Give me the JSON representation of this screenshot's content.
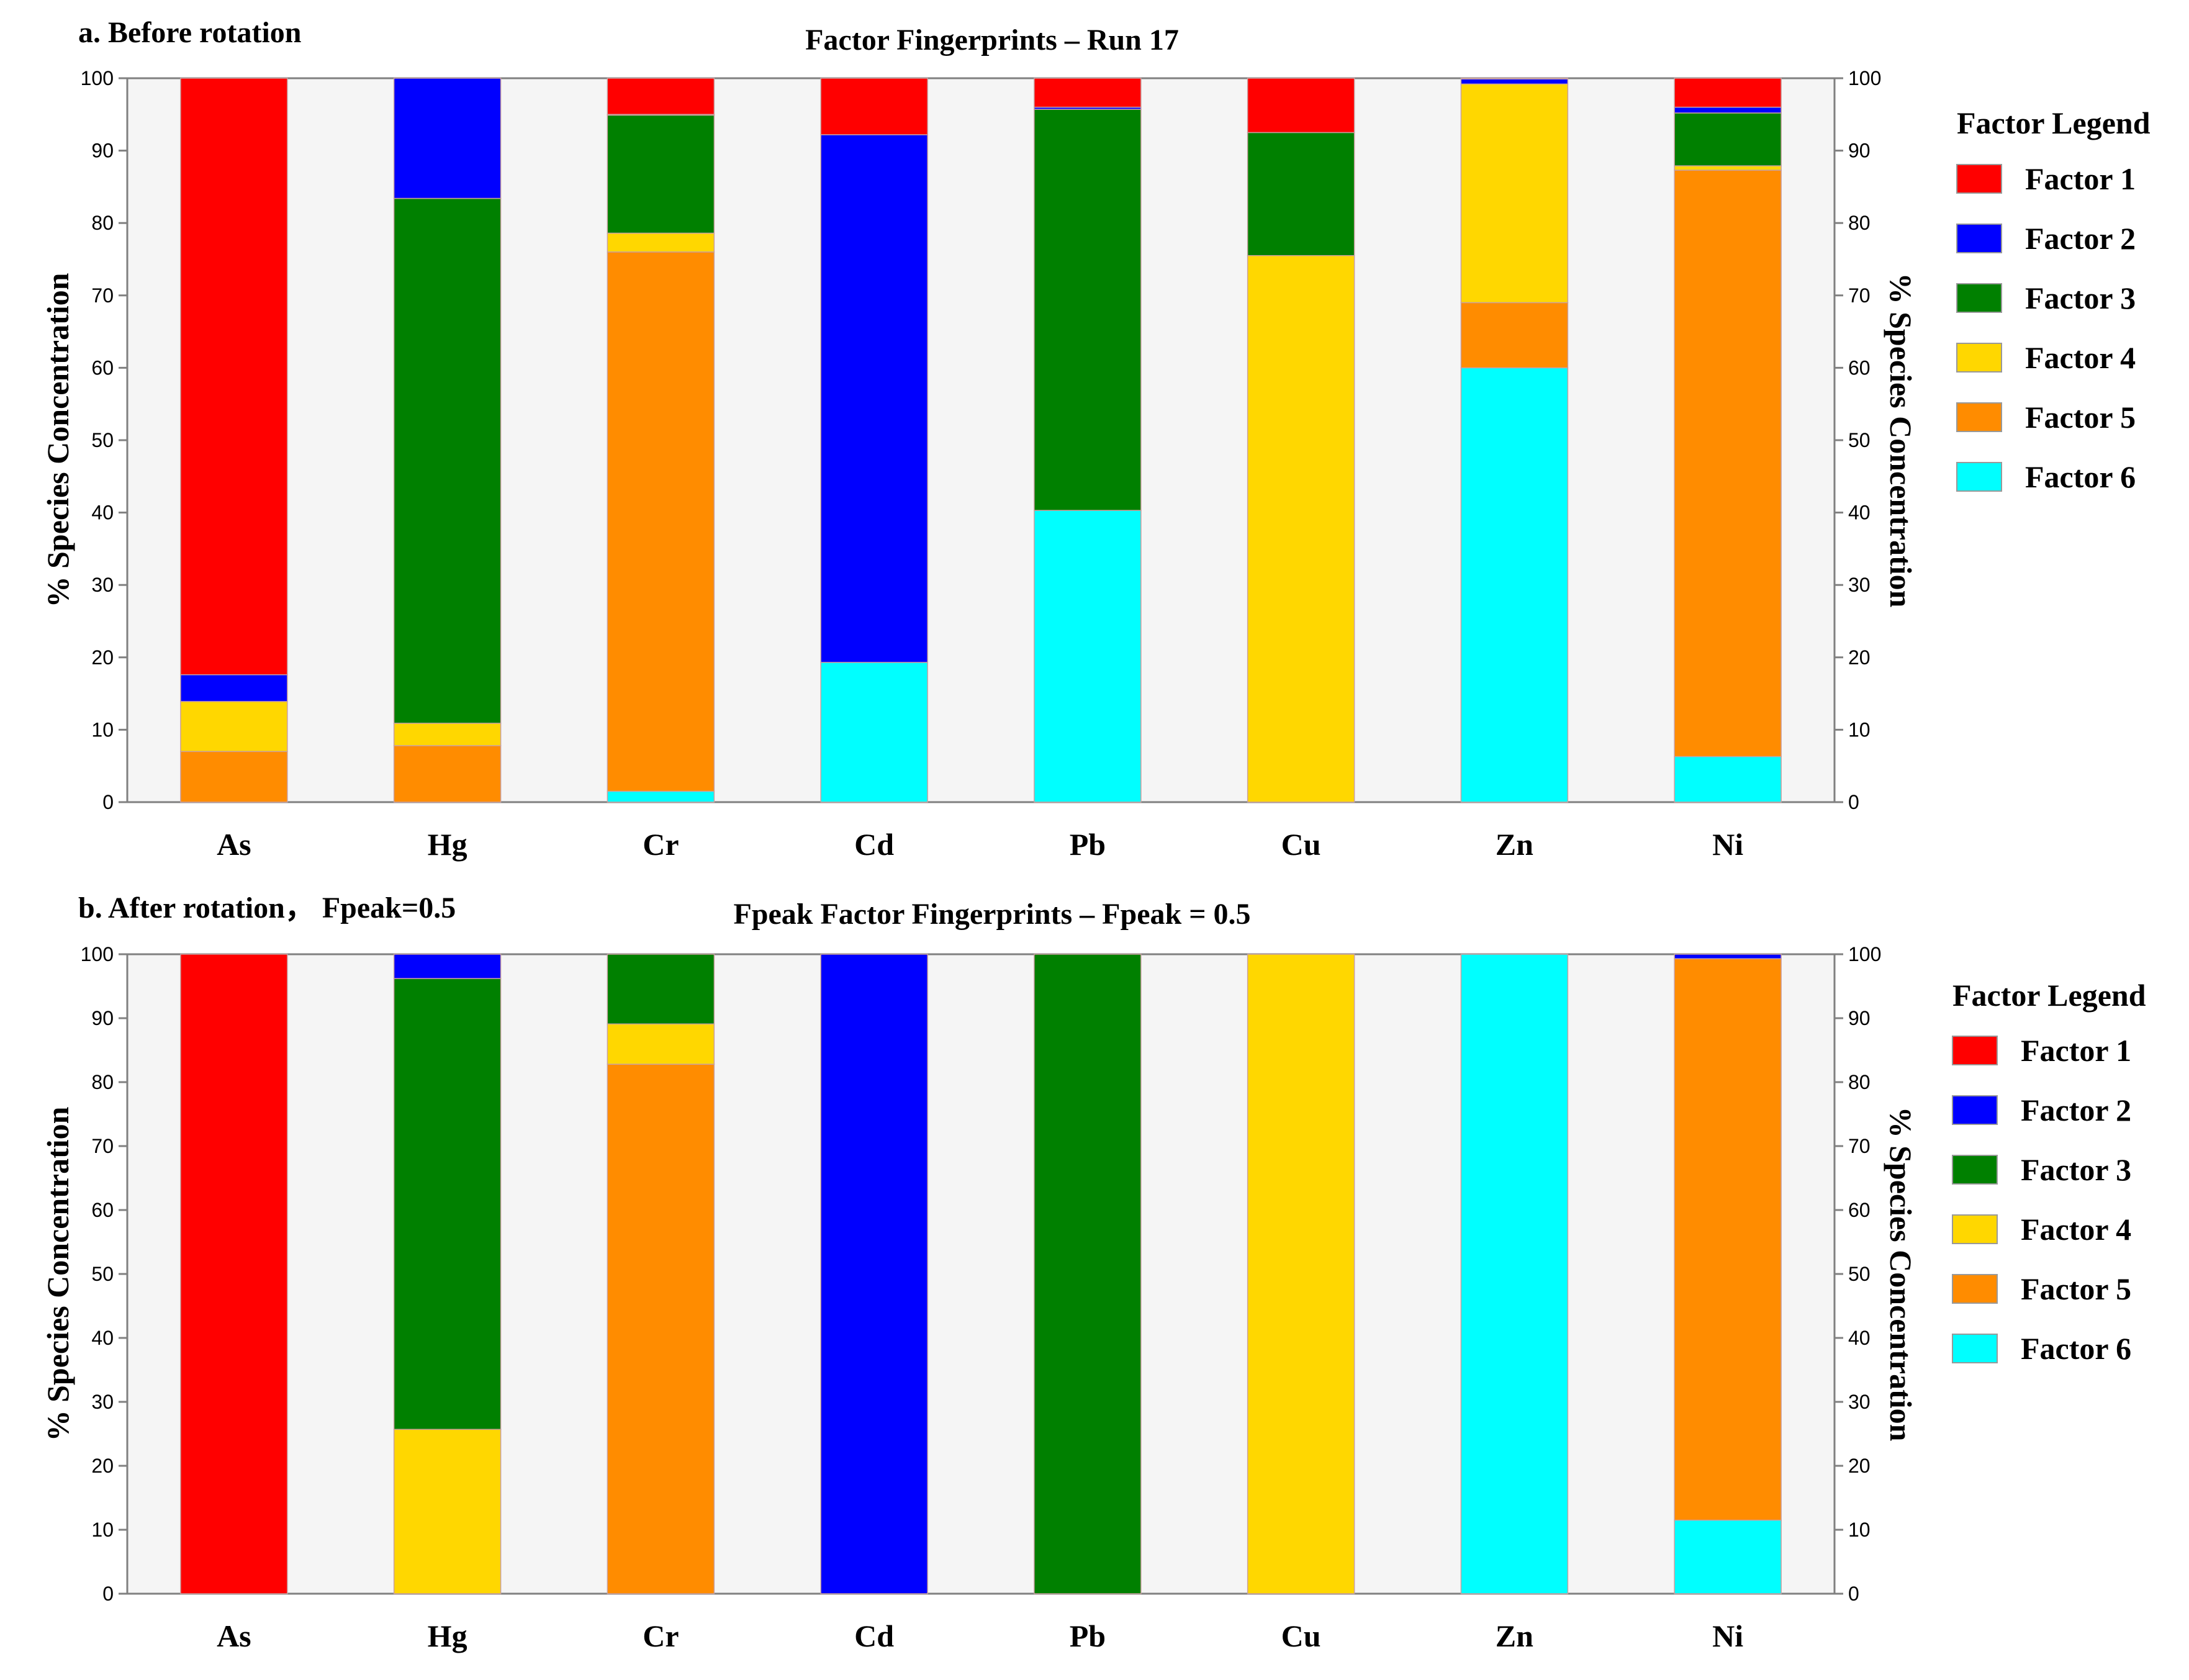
{
  "panels": [
    {
      "panel_label": "a. Before rotation",
      "legend_title": "Factor Legend",
      "chart_data": {
        "type": "bar",
        "stacked": true,
        "title": "Factor Fingerprints – Run 17",
        "ylabel": "% Species Concentration",
        "ylabel_right": "% Species Concentration",
        "xlabel": "",
        "ylim": [
          0,
          100
        ],
        "yticks": [
          0,
          10,
          20,
          30,
          40,
          50,
          60,
          70,
          80,
          90,
          100
        ],
        "categories": [
          "As",
          "Hg",
          "Cr",
          "Cd",
          "Pb",
          "Cu",
          "Zn",
          "Ni"
        ],
        "series": [
          {
            "name": "Factor 6",
            "color": "#00FFFF",
            "values": [
              0,
              0,
              1.5,
              19.3,
              40.3,
              0,
              60,
              6.3
            ]
          },
          {
            "name": "Factor 5",
            "color": "#FF8C00",
            "values": [
              7,
              7.8,
              74.5,
              0,
              0,
              0,
              9,
              81
            ]
          },
          {
            "name": "Factor 4",
            "color": "#FFD700",
            "values": [
              6.9,
              3.1,
              2.6,
              0,
              0,
              75.5,
              30.2,
              0.6
            ]
          },
          {
            "name": "Factor 3",
            "color": "#008000",
            "values": [
              0,
              72.5,
              16.3,
              0,
              55.4,
              17,
              0,
              7.3
            ]
          },
          {
            "name": "Factor 2",
            "color": "#0000FF",
            "values": [
              3.7,
              16.6,
              0.1,
              72.9,
              0.3,
              0,
              0.7,
              0.8
            ]
          },
          {
            "name": "Factor 1",
            "color": "#FF0000",
            "values": [
              82.4,
              0,
              5,
              7.8,
              4,
              7.5,
              0.1,
              4
            ]
          }
        ]
      }
    },
    {
      "panel_label": "b. After rotation， Fpeak=0.5",
      "legend_title": "Factor Legend",
      "chart_data": {
        "type": "bar",
        "stacked": true,
        "title": "Fpeak Factor Fingerprints – Fpeak = 0.5",
        "ylabel": "% Species Concentration",
        "ylabel_right": "% Species Concentration",
        "xlabel": "",
        "ylim": [
          0,
          100
        ],
        "yticks": [
          0,
          10,
          20,
          30,
          40,
          50,
          60,
          70,
          80,
          90,
          100
        ],
        "categories": [
          "As",
          "Hg",
          "Cr",
          "Cd",
          "Pb",
          "Cu",
          "Zn",
          "Ni"
        ],
        "series": [
          {
            "name": "Factor 6",
            "color": "#00FFFF",
            "values": [
              0,
              0,
              0,
              0,
              0,
              0,
              100,
              11.5
            ]
          },
          {
            "name": "Factor 5",
            "color": "#FF8C00",
            "values": [
              0,
              0,
              82.8,
              0,
              0,
              0,
              0,
              87.8
            ]
          },
          {
            "name": "Factor 4",
            "color": "#FFD700",
            "values": [
              0,
              25.7,
              6.3,
              0,
              0,
              100,
              0,
              0
            ]
          },
          {
            "name": "Factor 3",
            "color": "#008000",
            "values": [
              0,
              70.5,
              10.9,
              0,
              100,
              0,
              0,
              0
            ]
          },
          {
            "name": "Factor 2",
            "color": "#0000FF",
            "values": [
              0,
              3.8,
              0,
              100,
              0,
              0,
              0,
              0.7
            ]
          },
          {
            "name": "Factor 1",
            "color": "#FF0000",
            "values": [
              100,
              0,
              0,
              0,
              0,
              0,
              0,
              0
            ]
          }
        ]
      }
    }
  ],
  "legend_order": [
    "Factor 1",
    "Factor 2",
    "Factor 3",
    "Factor 4",
    "Factor 5",
    "Factor 6"
  ],
  "colors": {
    "plot_background": "#F5F5F5",
    "axis": "#808080",
    "text": "#000000"
  }
}
